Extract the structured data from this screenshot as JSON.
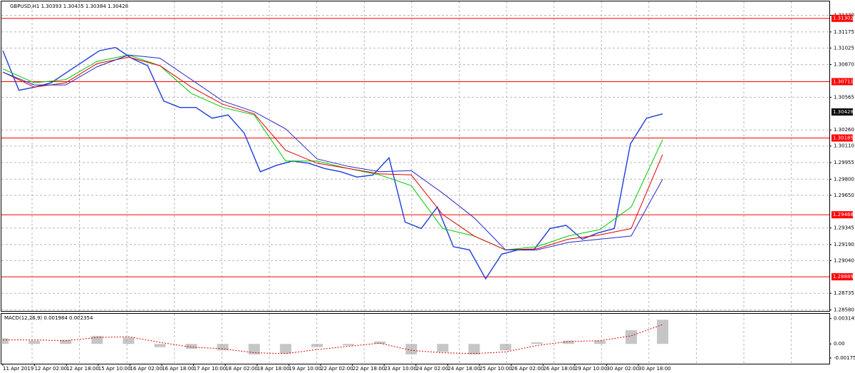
{
  "chart_data": {
    "type": "line",
    "title": "GBPUSD,H1  1.30393 1.30435 1.30384 1.30428",
    "ylim": [
      1.2857,
      1.3146
    ],
    "yticks": [
      {
        "value": 1.3133,
        "label": "1.31330"
      },
      1.31175,
      1.31025,
      {
        "value": 1.3087,
        "label": "1.30870"
      },
      1.30565,
      {
        "value": 1.3026,
        "label": "1.30260"
      },
      {
        "value": 1.3011,
        "label": "1.30110"
      },
      1.29955,
      {
        "value": 1.298,
        "label": "1.29800"
      },
      {
        "value": 1.2965,
        "label": "1.29650"
      },
      1.29345,
      {
        "value": 1.2919,
        "label": "1.29190"
      },
      {
        "value": 1.2904,
        "label": "1.29040"
      },
      1.28735,
      {
        "value": 1.2858,
        "label": "1.28580"
      }
    ],
    "levels": [
      1.31302,
      1.30711,
      1.30185,
      1.29468,
      1.28889
    ],
    "level_color": "#ff0000",
    "current_price": 1.30428,
    "time_labels": [
      "11 Apr 2019",
      "12 Apr 02:00",
      "12 Apr 18:00",
      "15 Apr 10:00",
      "16 Apr 02:00",
      "16 Apr 18:00",
      "17 Apr 10:00",
      "18 Apr 02:00",
      "18 Apr 18:00",
      "19 Apr 10:00",
      "22 Apr 02:00",
      "22 Apr 18:00",
      "23 Apr 10:00",
      "24 Apr 02:00",
      "24 Apr 18:00",
      "25 Apr 10:00",
      "26 Apr 02:00",
      "26 Apr 18:00",
      "29 Apr 10:00",
      "30 Apr 02:00",
      "30 Apr 18:00"
    ],
    "series": [
      {
        "color": "#1e3cd8",
        "values": [
          1.31,
          1.3063,
          1.3066,
          1.307,
          1.308,
          1.309,
          1.31,
          1.3103,
          1.3093,
          1.3086,
          1.3053,
          1.3047,
          1.3047,
          1.3037,
          1.304,
          1.3023,
          1.2987,
          1.2993,
          1.2997,
          1.2995,
          1.299,
          1.2987,
          1.2982,
          1.2984,
          1.3,
          1.294,
          1.2934,
          1.2954,
          1.2917,
          1.2914,
          1.2887,
          1.291,
          1.2914,
          1.2914,
          1.2934,
          1.2937,
          1.2924,
          1.293,
          1.2934,
          1.3013,
          1.3037,
          1.3041
        ]
      },
      {
        "color": "#00c800",
        "values": [
          1.3083,
          1.307,
          1.3073,
          1.309,
          1.3096,
          1.3086,
          1.306,
          1.3047,
          1.304,
          1.2997,
          1.2997,
          1.299,
          1.2984,
          1.2974,
          1.2934,
          1.2927,
          1.2914,
          1.2917,
          1.2927,
          1.2933,
          1.2954,
          1.3017
        ]
      },
      {
        "color": "#e00000",
        "values": [
          1.308,
          1.3066,
          1.307,
          1.3088,
          1.3094,
          1.3086,
          1.3066,
          1.305,
          1.3041,
          1.3007,
          1.2995,
          1.299,
          1.2985,
          1.2984,
          1.2947,
          1.2927,
          1.2914,
          1.2915,
          1.2924,
          1.2928,
          1.2934,
          1.3003
        ]
      },
      {
        "color": "#2828c8",
        "values": [
          1.308,
          1.3068,
          1.3068,
          1.3085,
          1.3096,
          1.3093,
          1.3073,
          1.3053,
          1.3043,
          1.3027,
          1.2999,
          1.2992,
          1.2987,
          1.2988,
          1.2967,
          1.2944,
          1.2914,
          1.2914,
          1.2921,
          1.2924,
          1.2927,
          1.298
        ]
      }
    ],
    "macd": {
      "title": "MACD(12,26,9) 0.001984 0.002354",
      "ylim": [
        -0.00246,
        0.00374
      ],
      "yticks": [
        0.003145,
        {
          "value": 0,
          "label": "0.00"
        },
        -0.001754
      ],
      "histogram": {
        "color": "#a0a0a0",
        "values": [
          0.0007,
          0.0004,
          0.0005,
          0.001,
          0.0008,
          -0.0004,
          -0.0006,
          -0.0008,
          -0.0013,
          -0.0012,
          -0.0004,
          -0.0002,
          0.0003,
          -0.0013,
          -0.001,
          -0.0013,
          -0.0008,
          0.0002,
          0.0004,
          0.0004,
          0.0017,
          0.003
        ]
      },
      "signal": {
        "color": "#e00000",
        "values": [
          0.0005,
          0.0005,
          0.0004,
          0.0008,
          0.0009,
          0.0002,
          -0.0004,
          -0.0006,
          -0.0011,
          -0.0012,
          -0.0007,
          -0.0003,
          0.0001,
          -0.0008,
          -0.0011,
          -0.0012,
          -0.001,
          -0.0002,
          0.0003,
          0.0004,
          0.001,
          0.0024
        ]
      }
    }
  }
}
